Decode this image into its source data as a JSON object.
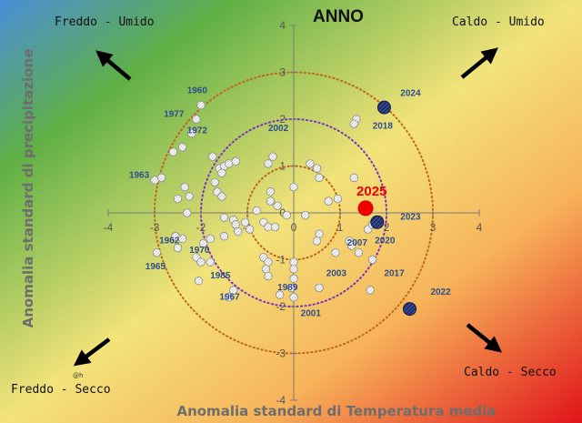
{
  "chart_data": {
    "type": "scatter",
    "title": "ANNO",
    "xlabel": "Anomalia standard di Temperatura media",
    "ylabel": "Anomalia standard di precipitazione",
    "xlim": [
      -4,
      4
    ],
    "ylim": [
      -4,
      4
    ],
    "xticks": [
      -4,
      -3,
      -2,
      -1,
      0,
      1,
      2,
      3,
      4
    ],
    "yticks": [
      -4,
      -3,
      -2,
      -1,
      0,
      1,
      2,
      3,
      4
    ],
    "grid": false,
    "background": "diagonal gradient: blue (top-left) to green, yellow, orange, red (bottom-right)",
    "circles": [
      {
        "radius": 1,
        "color": "#c0641a"
      },
      {
        "radius": 2,
        "color": "#7a2fc0"
      },
      {
        "radius": 3,
        "color": "#c0641a"
      }
    ],
    "quadrant_labels": {
      "top_left": "Freddo - Umido",
      "top_right": "Caldo - Umido",
      "bottom_left": "Freddo - Secco",
      "bottom_right": "Caldo - Secco"
    },
    "watermark": "@h",
    "series": [
      {
        "style": "hatched-grey",
        "points": [
          {
            "x": -2.6,
            "y": 1.3,
            "label": ""
          },
          {
            "x": -2.0,
            "y": 2.3,
            "label": ""
          },
          {
            "x": -2.1,
            "y": 2.0,
            "label": ""
          },
          {
            "x": -2.2,
            "y": 1.7,
            "label": ""
          },
          {
            "x": -2.4,
            "y": 1.4,
            "label": ""
          },
          {
            "x": -3.0,
            "y": 0.7,
            "label": ""
          },
          {
            "x": -2.85,
            "y": 0.75,
            "label": ""
          },
          {
            "x": -1.75,
            "y": 1.2,
            "label": ""
          },
          {
            "x": -1.6,
            "y": 0.95,
            "label": ""
          },
          {
            "x": -1.5,
            "y": 1.0,
            "label": ""
          },
          {
            "x": -1.4,
            "y": 1.05,
            "label": ""
          },
          {
            "x": -1.25,
            "y": 1.1,
            "label": ""
          },
          {
            "x": -1.55,
            "y": 0.85,
            "label": ""
          },
          {
            "x": -1.7,
            "y": 0.65,
            "label": ""
          },
          {
            "x": -2.35,
            "y": 0.55,
            "label": ""
          },
          {
            "x": -2.25,
            "y": 0.35,
            "label": ""
          },
          {
            "x": -2.5,
            "y": 0.3,
            "label": ""
          },
          {
            "x": -2.3,
            "y": 0.0,
            "label": ""
          },
          {
            "x": -1.65,
            "y": 0.45,
            "label": ""
          },
          {
            "x": -1.55,
            "y": 0.35,
            "label": ""
          },
          {
            "x": -0.45,
            "y": 1.2,
            "label": ""
          },
          {
            "x": -0.55,
            "y": 1.05,
            "label": ""
          },
          {
            "x": 0.35,
            "y": 1.05,
            "label": ""
          },
          {
            "x": 0.0,
            "y": 0.55,
            "label": ""
          },
          {
            "x": 0.55,
            "y": 0.75,
            "label": ""
          },
          {
            "x": 1.3,
            "y": 0.75,
            "label": ""
          },
          {
            "x": 1.35,
            "y": 2.0,
            "label": ""
          },
          {
            "x": 1.3,
            "y": 1.9,
            "label": ""
          },
          {
            "x": -0.5,
            "y": 0.25,
            "label": ""
          },
          {
            "x": -0.8,
            "y": 0.05,
            "label": ""
          },
          {
            "x": -0.15,
            "y": -0.05,
            "label": ""
          },
          {
            "x": 0.25,
            "y": -0.05,
            "label": ""
          },
          {
            "x": 0.75,
            "y": 0.25,
            "label": ""
          },
          {
            "x": 0.95,
            "y": 0.3,
            "label": ""
          },
          {
            "x": -1.5,
            "y": -0.1,
            "label": ""
          },
          {
            "x": -1.3,
            "y": -0.15,
            "label": ""
          },
          {
            "x": -1.25,
            "y": -0.25,
            "label": ""
          },
          {
            "x": -1.2,
            "y": -0.4,
            "label": ""
          },
          {
            "x": -1.05,
            "y": -0.2,
            "label": ""
          },
          {
            "x": -0.95,
            "y": -0.35,
            "label": ""
          },
          {
            "x": -0.65,
            "y": -0.2,
            "label": ""
          },
          {
            "x": -0.55,
            "y": -0.3,
            "label": ""
          },
          {
            "x": -0.4,
            "y": -0.3,
            "label": ""
          },
          {
            "x": -1.5,
            "y": -0.5,
            "label": ""
          },
          {
            "x": -1.8,
            "y": -0.55,
            "label": ""
          },
          {
            "x": -1.95,
            "y": -0.65,
            "label": ""
          },
          {
            "x": -2.55,
            "y": -0.5,
            "label": ""
          },
          {
            "x": -2.4,
            "y": -0.55,
            "label": ""
          },
          {
            "x": -2.5,
            "y": -0.75,
            "label": ""
          },
          {
            "x": -2.1,
            "y": -0.95,
            "label": ""
          },
          {
            "x": -2.0,
            "y": -1.05,
            "label": ""
          },
          {
            "x": -1.8,
            "y": -1.05,
            "label": ""
          },
          {
            "x": -2.95,
            "y": -0.85,
            "label": ""
          },
          {
            "x": -2.05,
            "y": -1.45,
            "label": ""
          },
          {
            "x": -1.3,
            "y": -1.65,
            "label": ""
          },
          {
            "x": -1.4,
            "y": -1.8,
            "label": ""
          },
          {
            "x": -0.65,
            "y": -0.95,
            "label": ""
          },
          {
            "x": -0.55,
            "y": -1.05,
            "label": ""
          },
          {
            "x": -0.6,
            "y": -1.2,
            "label": ""
          },
          {
            "x": -0.55,
            "y": -1.35,
            "label": ""
          },
          {
            "x": 0.0,
            "y": -1.05,
            "label": ""
          },
          {
            "x": 0.0,
            "y": -1.2,
            "label": ""
          },
          {
            "x": 0.0,
            "y": -1.4,
            "label": ""
          },
          {
            "x": -0.05,
            "y": -1.6,
            "label": ""
          },
          {
            "x": 0.0,
            "y": -1.8,
            "label": ""
          },
          {
            "x": 0.55,
            "y": -0.45,
            "label": ""
          },
          {
            "x": 0.5,
            "y": -0.6,
            "label": ""
          },
          {
            "x": 1.2,
            "y": -0.6,
            "label": ""
          },
          {
            "x": 1.25,
            "y": -0.7,
            "label": ""
          },
          {
            "x": 0.9,
            "y": -0.85,
            "label": ""
          },
          {
            "x": 1.4,
            "y": -0.85,
            "label": ""
          },
          {
            "x": 1.7,
            "y": -1.0,
            "label": ""
          },
          {
            "x": 1.6,
            "y": -0.35,
            "label": ""
          },
          {
            "x": 1.7,
            "y": -0.25,
            "label": ""
          },
          {
            "x": 1.85,
            "y": -0.15,
            "label": ""
          },
          {
            "x": 0.55,
            "y": -1.6,
            "label": ""
          },
          {
            "x": 1.65,
            "y": -1.65,
            "label": ""
          },
          {
            "x": -0.3,
            "y": -1.75,
            "label": ""
          },
          {
            "x": 0.5,
            "y": 0.95,
            "label": ""
          },
          {
            "x": -0.5,
            "y": 0.45,
            "label": ""
          },
          {
            "x": -0.35,
            "y": 0.15,
            "label": ""
          }
        ]
      },
      {
        "style": "navy-highlight",
        "points": [
          {
            "x": 1.95,
            "y": 2.25,
            "label": ""
          },
          {
            "x": 1.8,
            "y": -0.2,
            "label": ""
          },
          {
            "x": 2.5,
            "y": -2.05,
            "label": ""
          }
        ]
      },
      {
        "style": "red-current",
        "points": [
          {
            "x": 1.55,
            "y": 0.1,
            "label": "2025"
          }
        ]
      }
    ],
    "year_labels": [
      {
        "text": "1960",
        "x": -2.3,
        "y": 2.55
      },
      {
        "text": "1977",
        "x": -2.8,
        "y": 2.05
      },
      {
        "text": "1972",
        "x": -2.3,
        "y": 1.7
      },
      {
        "text": "1963",
        "x": -3.55,
        "y": 0.75
      },
      {
        "text": "2002",
        "x": -0.55,
        "y": 1.75
      },
      {
        "text": "2018",
        "x": 1.7,
        "y": 1.8
      },
      {
        "text": "2024",
        "x": 2.3,
        "y": 2.5
      },
      {
        "text": "2023",
        "x": 2.3,
        "y": -0.15
      },
      {
        "text": "2007",
        "x": 1.15,
        "y": -0.7
      },
      {
        "text": "2020",
        "x": 1.75,
        "y": -0.65
      },
      {
        "text": "1962",
        "x": -2.9,
        "y": -0.65
      },
      {
        "text": "1970",
        "x": -2.25,
        "y": -0.85
      },
      {
        "text": "1965",
        "x": -3.2,
        "y": -1.2
      },
      {
        "text": "1985",
        "x": -1.8,
        "y": -1.4
      },
      {
        "text": "1967",
        "x": -1.6,
        "y": -1.85
      },
      {
        "text": "1989",
        "x": -0.35,
        "y": -1.65
      },
      {
        "text": "2003",
        "x": 0.7,
        "y": -1.35
      },
      {
        "text": "2017",
        "x": 1.95,
        "y": -1.35
      },
      {
        "text": "2022",
        "x": 2.95,
        "y": -1.75
      },
      {
        "text": "2001",
        "x": 0.15,
        "y": -2.2
      }
    ]
  }
}
